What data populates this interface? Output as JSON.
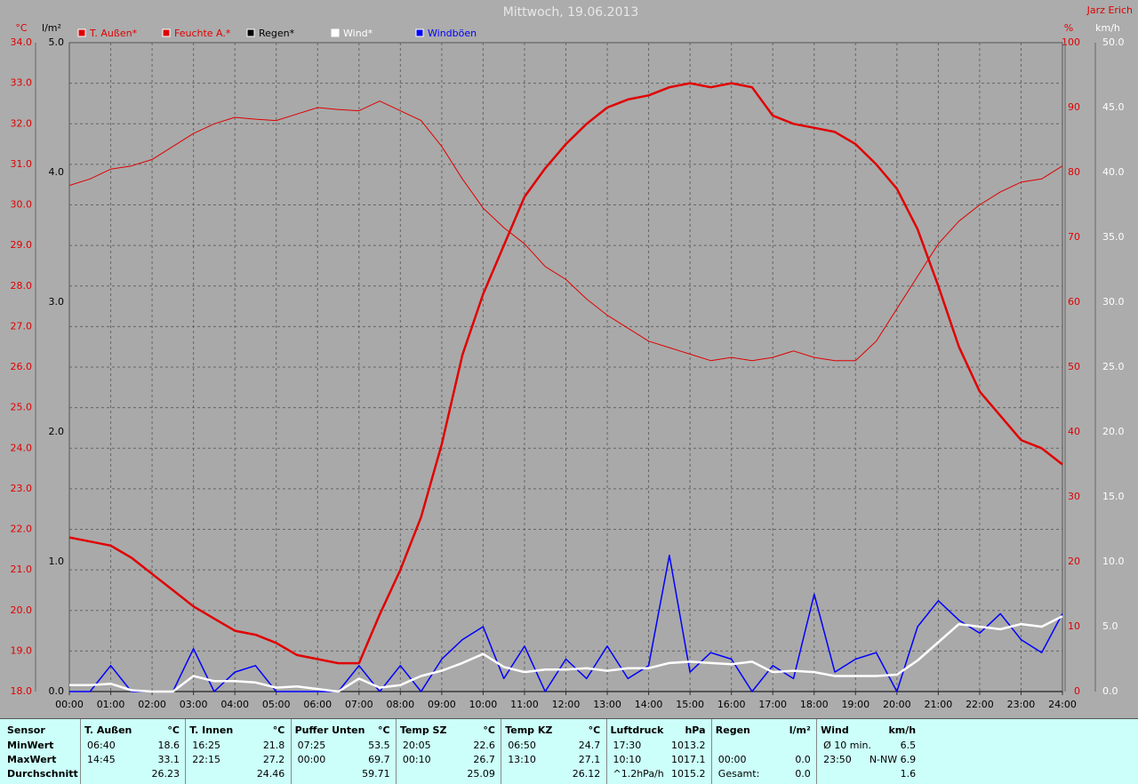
{
  "chart_data": {
    "type": "line",
    "title": "Mittwoch, 19.06.2013",
    "author": "Jarz Erich",
    "y_label": "°C",
    "y3_label": "l/m²",
    "y2_label": "%",
    "y4_label": "km/h",
    "x": [
      0,
      0.5,
      1,
      1.5,
      2,
      2.5,
      3,
      3.5,
      4,
      4.5,
      5,
      5.5,
      6,
      6.5,
      7,
      7.5,
      8,
      8.5,
      9,
      9.5,
      10,
      10.5,
      11,
      11.5,
      12,
      12.5,
      13,
      13.5,
      14,
      14.5,
      15,
      15.5,
      16,
      16.5,
      17,
      17.5,
      18,
      18.5,
      19,
      19.5,
      20,
      20.5,
      21,
      21.5,
      22,
      22.5,
      23,
      23.5,
      24
    ],
    "xlim": [
      0,
      24
    ],
    "xticks": [
      {
        "value": 0,
        "label": "00:00"
      },
      {
        "value": 1,
        "label": "01:00"
      },
      {
        "value": 2,
        "label": "02:00"
      },
      {
        "value": 3,
        "label": "03:00"
      },
      {
        "value": 4,
        "label": "04:00"
      },
      {
        "value": 5,
        "label": "05:00"
      },
      {
        "value": 6,
        "label": "06:00"
      },
      {
        "value": 7,
        "label": "07:00"
      },
      {
        "value": 8,
        "label": "08:00"
      },
      {
        "value": 9,
        "label": "09:00"
      },
      {
        "value": 10,
        "label": "10:00"
      },
      {
        "value": 11,
        "label": "11:00"
      },
      {
        "value": 12,
        "label": "12:00"
      },
      {
        "value": 13,
        "label": "13:00"
      },
      {
        "value": 14,
        "label": "14:00"
      },
      {
        "value": 15,
        "label": "15:00"
      },
      {
        "value": 16,
        "label": "16:00"
      },
      {
        "value": 17,
        "label": "17:00"
      },
      {
        "value": 18,
        "label": "18:00"
      },
      {
        "value": 19,
        "label": "19:00"
      },
      {
        "value": 20,
        "label": "20:00"
      },
      {
        "value": 21,
        "label": "21:00"
      },
      {
        "value": 22,
        "label": "22:00"
      },
      {
        "value": 23,
        "label": "23:00"
      },
      {
        "value": 24,
        "label": "24:00"
      }
    ],
    "ylim": [
      18,
      34
    ],
    "yticks": [
      {
        "value": 18,
        "label": "18.0"
      },
      {
        "value": 19,
        "label": "19.0"
      },
      {
        "value": 20,
        "label": "20.0"
      },
      {
        "value": 21,
        "label": "21.0"
      },
      {
        "value": 22,
        "label": "22.0"
      },
      {
        "value": 23,
        "label": "23.0"
      },
      {
        "value": 24,
        "label": "24.0"
      },
      {
        "value": 25,
        "label": "25.0"
      },
      {
        "value": 26,
        "label": "26.0"
      },
      {
        "value": 27,
        "label": "27.0"
      },
      {
        "value": 28,
        "label": "28.0"
      },
      {
        "value": 29,
        "label": "29.0"
      },
      {
        "value": 30,
        "label": "30.0"
      },
      {
        "value": 31,
        "label": "31.0"
      },
      {
        "value": 32,
        "label": "32.0"
      },
      {
        "value": 33,
        "label": "33.0"
      },
      {
        "value": 34,
        "label": "34.0"
      }
    ],
    "y3lim": [
      0,
      5
    ],
    "y3ticks": [
      {
        "value": 0,
        "label": "0.0"
      },
      {
        "value": 1,
        "label": "1.0"
      },
      {
        "value": 2,
        "label": "2.0"
      },
      {
        "value": 3,
        "label": "3.0"
      },
      {
        "value": 4,
        "label": "4.0"
      },
      {
        "value": 5,
        "label": "5.0"
      }
    ],
    "y2lim": [
      0,
      100
    ],
    "y2ticks": [
      0,
      10,
      20,
      30,
      40,
      50,
      60,
      70,
      80,
      90,
      100
    ],
    "y4lim": [
      0,
      50
    ],
    "y4ticks": [
      {
        "value": 0,
        "label": "0.0"
      },
      {
        "value": 5,
        "label": "5.0"
      },
      {
        "value": 10,
        "label": "10.0"
      },
      {
        "value": 15,
        "label": "15.0"
      },
      {
        "value": 20,
        "label": "20.0"
      },
      {
        "value": 25,
        "label": "25.0"
      },
      {
        "value": 30,
        "label": "30.0"
      },
      {
        "value": 35,
        "label": "35.0"
      },
      {
        "value": 40,
        "label": "40.0"
      },
      {
        "value": 45,
        "label": "45.0"
      },
      {
        "value": 50,
        "label": "50.0"
      }
    ],
    "grid": true,
    "series": [
      {
        "name": "T. Außen*",
        "color": "#e00000",
        "axis": "y",
        "width": 2.5,
        "values": [
          21.8,
          21.7,
          21.6,
          21.3,
          20.9,
          20.5,
          20.1,
          19.8,
          19.5,
          19.4,
          19.2,
          18.9,
          18.8,
          18.7,
          18.7,
          19.9,
          21.0,
          22.3,
          24.1,
          26.3,
          27.8,
          29.0,
          30.2,
          30.9,
          31.5,
          32.0,
          32.4,
          32.6,
          32.7,
          32.9,
          33.0,
          32.9,
          33.0,
          32.9,
          32.2,
          32.0,
          31.9,
          31.8,
          31.5,
          31.0,
          30.4,
          29.4,
          28.0,
          26.5,
          25.4,
          24.8,
          24.2,
          24.0,
          23.6
        ]
      },
      {
        "name": "Feuchte A.*",
        "color": "#e00000",
        "axis": "y2",
        "width": 1,
        "values": [
          78,
          79,
          80.5,
          81,
          82,
          84,
          86,
          87.5,
          88.5,
          88.2,
          88,
          89,
          90,
          89.7,
          89.5,
          91,
          89.5,
          88,
          84,
          79,
          74.5,
          71.5,
          69,
          65.5,
          63.5,
          60.5,
          58,
          56,
          54,
          53,
          52,
          51,
          51.5,
          51,
          51.5,
          52.5,
          51.5,
          51,
          51,
          54,
          59,
          64,
          69,
          72.5,
          75,
          77,
          78.5,
          79,
          81
        ]
      },
      {
        "name": "Regen*",
        "color": "#000000",
        "axis": "y3",
        "width": 1,
        "values": [
          0,
          0,
          0,
          0,
          0,
          0,
          0,
          0,
          0,
          0,
          0,
          0,
          0,
          0,
          0,
          0,
          0,
          0,
          0,
          0,
          0,
          0,
          0,
          0,
          0,
          0,
          0,
          0,
          0,
          0,
          0,
          0,
          0,
          0,
          0,
          0,
          0,
          0,
          0,
          0,
          0,
          0,
          0,
          0,
          0,
          0,
          0,
          0,
          0
        ]
      },
      {
        "name": "Windböen",
        "color": "#0000ff",
        "axis": "y4",
        "width": 1.5,
        "values": [
          0,
          0,
          2,
          0,
          0,
          0,
          3.3,
          0,
          1.5,
          2,
          0,
          0,
          0,
          0,
          2,
          0,
          2,
          0,
          2.5,
          4,
          5,
          1,
          3.5,
          0,
          2.5,
          1,
          3.5,
          1,
          2,
          10.5,
          1.5,
          3,
          2.5,
          0,
          2,
          1,
          7.5,
          1.5,
          2.5,
          3,
          0,
          5,
          7,
          5.5,
          4.5,
          6,
          4,
          3,
          6
        ]
      },
      {
        "name": "Wind*",
        "color": "#ffffff",
        "axis": "y4",
        "width": 2.5,
        "values": [
          0.5,
          0.5,
          0.6,
          0.1,
          0,
          0,
          1.2,
          0.8,
          0.8,
          0.7,
          0.3,
          0.4,
          0.2,
          0,
          1,
          0.3,
          0.5,
          1.2,
          1.6,
          2.2,
          2.9,
          1.9,
          1.5,
          1.7,
          1.7,
          1.8,
          1.6,
          1.8,
          1.8,
          2.2,
          2.3,
          2.2,
          2.1,
          2.3,
          1.5,
          1.6,
          1.5,
          1.2,
          1.2,
          1.2,
          1.3,
          2.4,
          3.8,
          5.2,
          5,
          4.8,
          5.2,
          5,
          5.8
        ]
      }
    ],
    "legend_order": [
      0,
      1,
      2,
      4,
      3
    ]
  },
  "stats": {
    "sensor_header": "Sensor",
    "row_labels": [
      "MinWert",
      "MaxWert",
      "Durchschnitt"
    ],
    "columns": [
      {
        "name": "T. Außen",
        "unit": "°C",
        "rows": [
          {
            "time": "06:40",
            "value": "18.6"
          },
          {
            "time": "14:45",
            "value": "33.1"
          },
          {
            "value": "26.23"
          }
        ]
      },
      {
        "name": "T. Innen",
        "unit": "°C",
        "rows": [
          {
            "time": "16:25",
            "value": "21.8"
          },
          {
            "time": "22:15",
            "value": "27.2"
          },
          {
            "value": "24.46"
          }
        ]
      },
      {
        "name": "Puffer Unten",
        "unit": "°C",
        "rows": [
          {
            "time": "07:25",
            "value": "53.5"
          },
          {
            "time": "00:00",
            "value": "69.7"
          },
          {
            "value": "59.71"
          }
        ]
      },
      {
        "name": "Temp SZ",
        "unit": "°C",
        "rows": [
          {
            "time": "20:05",
            "value": "22.6"
          },
          {
            "time": "00:10",
            "value": "26.7"
          },
          {
            "value": "25.09"
          }
        ]
      },
      {
        "name": "Temp KZ",
        "unit": "°C",
        "rows": [
          {
            "time": "06:50",
            "value": "24.7"
          },
          {
            "time": "13:10",
            "value": "27.1"
          },
          {
            "value": "26.12"
          }
        ]
      },
      {
        "name": "Luftdruck",
        "unit": "hPa",
        "rows": [
          {
            "time": "17:30",
            "value": "1013.2"
          },
          {
            "time": "10:10",
            "value": "1017.1"
          },
          {
            "time": "^1.2hPa/h",
            "value": "1015.2"
          }
        ]
      },
      {
        "name": "Regen",
        "unit": "l/m²",
        "rows": [
          {},
          {
            "time": "00:00",
            "value": "0.0"
          },
          {
            "time": "Gesamt:",
            "value": "0.0"
          }
        ]
      },
      {
        "name": "Wind",
        "unit": "km/h",
        "rows": [
          {
            "time": "Ø 10 min.",
            "value": "6.5"
          },
          {
            "time": "23:50",
            "value": "N-NW 6.9"
          },
          {
            "value": "1.6"
          }
        ]
      }
    ]
  }
}
